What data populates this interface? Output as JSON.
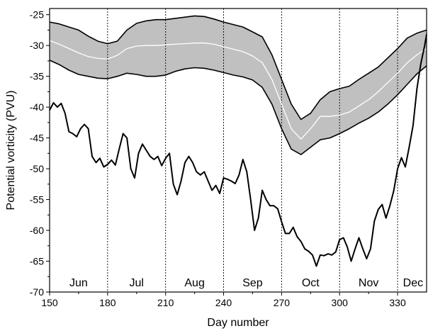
{
  "chart_data": {
    "type": "line",
    "title": "",
    "xlabel": "Day number",
    "ylabel": "Potential vorticity (PVU)",
    "xlim": [
      150,
      345
    ],
    "ylim": [
      -70,
      -24
    ],
    "xticks": [
      150,
      180,
      210,
      240,
      270,
      300,
      330
    ],
    "yticks": [
      -70,
      -65,
      -60,
      -55,
      -50,
      -45,
      -40,
      -35,
      -30,
      -25
    ],
    "month_dividers": [
      180,
      210,
      240,
      270,
      300,
      330
    ],
    "month_labels": [
      {
        "label": "Jun",
        "x": 165
      },
      {
        "label": "Jul",
        "x": 195
      },
      {
        "label": "Aug",
        "x": 225
      },
      {
        "label": "Sep",
        "x": 255
      },
      {
        "label": "Oct",
        "x": 285
      },
      {
        "label": "Nov",
        "x": 315
      },
      {
        "label": "Dec",
        "x": 338
      }
    ],
    "band_color": "#c0c0c0",
    "series": [
      {
        "role": "band-upper",
        "color": "#000000",
        "x": [
          150,
          155,
          160,
          165,
          170,
          175,
          180,
          185,
          190,
          195,
          200,
          205,
          210,
          215,
          220,
          225,
          230,
          235,
          240,
          245,
          250,
          255,
          260,
          265,
          270,
          275,
          280,
          285,
          290,
          295,
          300,
          305,
          310,
          315,
          320,
          325,
          330,
          335,
          340,
          345
        ],
        "y": [
          -26.2,
          -26.5,
          -27,
          -27.5,
          -28.5,
          -29.3,
          -29.7,
          -29.3,
          -27.5,
          -26.4,
          -26,
          -25.8,
          -25.8,
          -25.6,
          -25.4,
          -25.2,
          -25.3,
          -25.7,
          -26.2,
          -26.6,
          -27,
          -27.8,
          -28.6,
          -31.5,
          -35.5,
          -39.5,
          -42,
          -41,
          -38.8,
          -37.5,
          -37,
          -36.6,
          -35.5,
          -34.5,
          -33.5,
          -32,
          -30.5,
          -28.8,
          -28,
          -27.5
        ]
      },
      {
        "role": "mean",
        "color": "#ffffff",
        "x": [
          150,
          155,
          160,
          165,
          170,
          175,
          180,
          185,
          190,
          195,
          200,
          205,
          210,
          215,
          220,
          225,
          230,
          235,
          240,
          245,
          250,
          255,
          260,
          265,
          270,
          275,
          280,
          285,
          290,
          295,
          300,
          305,
          310,
          315,
          320,
          325,
          330,
          335,
          340,
          345
        ],
        "y": [
          -29.2,
          -29.8,
          -30.5,
          -31.2,
          -31.8,
          -32.1,
          -32.2,
          -31.6,
          -30.5,
          -30.1,
          -30,
          -30,
          -29.9,
          -29.8,
          -29.7,
          -29.6,
          -29.6,
          -29.8,
          -30.2,
          -30.6,
          -31,
          -31.7,
          -32.8,
          -35.5,
          -39.5,
          -43.5,
          -45.2,
          -43.5,
          -41.5,
          -41.5,
          -41.3,
          -40.8,
          -39.8,
          -38.8,
          -37.5,
          -36,
          -34.5,
          -32.8,
          -31.5,
          -30.5
        ]
      },
      {
        "role": "band-lower",
        "color": "#000000",
        "x": [
          150,
          155,
          160,
          165,
          170,
          175,
          180,
          185,
          190,
          195,
          200,
          205,
          210,
          215,
          220,
          225,
          230,
          235,
          240,
          245,
          250,
          255,
          260,
          265,
          270,
          275,
          280,
          285,
          290,
          295,
          300,
          305,
          310,
          315,
          320,
          325,
          330,
          335,
          340,
          345
        ],
        "y": [
          -32.4,
          -33.1,
          -34,
          -34.7,
          -35,
          -35.3,
          -35.4,
          -35,
          -34.5,
          -34.7,
          -35,
          -35,
          -34.8,
          -34.2,
          -33.8,
          -33.6,
          -33.7,
          -34,
          -34.4,
          -34.8,
          -35.1,
          -35.6,
          -36.8,
          -39.5,
          -43.5,
          -46.8,
          -47.7,
          -46.5,
          -45.3,
          -45,
          -44.3,
          -43.5,
          -42.6,
          -41.8,
          -40.8,
          -39.5,
          -38,
          -36.3,
          -34.6,
          -33.3
        ]
      },
      {
        "role": "black-curve",
        "color": "#000000",
        "x": [
          150,
          152,
          154,
          156,
          158,
          160,
          162,
          164,
          166,
          168,
          170,
          172,
          174,
          176,
          178,
          180,
          182,
          184,
          186,
          188,
          190,
          192,
          194,
          196,
          198,
          200,
          202,
          204,
          206,
          208,
          210,
          212,
          214,
          216,
          218,
          220,
          222,
          224,
          226,
          228,
          230,
          232,
          234,
          236,
          238,
          240,
          242,
          244,
          246,
          248,
          250,
          252,
          254,
          256,
          258,
          260,
          262,
          264,
          266,
          268,
          270,
          272,
          274,
          276,
          278,
          280,
          282,
          284,
          286,
          288,
          290,
          292,
          294,
          296,
          298,
          300,
          302,
          304,
          306,
          308,
          310,
          312,
          314,
          316,
          318,
          320,
          322,
          324,
          326,
          328,
          330,
          332,
          334,
          336,
          338,
          340,
          342,
          344,
          345
        ],
        "y": [
          -40.5,
          -39.3,
          -40,
          -39.4,
          -41,
          -44,
          -44.3,
          -44.8,
          -43.5,
          -42.8,
          -43.5,
          -48,
          -49,
          -48.3,
          -49.7,
          -49.3,
          -48.6,
          -49.4,
          -46.8,
          -44.3,
          -45,
          -50,
          -51.5,
          -47.5,
          -46,
          -47,
          -48,
          -48.5,
          -48,
          -49.5,
          -48.3,
          -47.5,
          -52.5,
          -54.2,
          -52,
          -49,
          -48,
          -49,
          -50.5,
          -51,
          -50.5,
          -52,
          -53.5,
          -52.7,
          -54,
          -51.5,
          -51.7,
          -52,
          -52.4,
          -51,
          -48.5,
          -50.5,
          -55,
          -60,
          -58,
          -53.5,
          -55,
          -56,
          -56,
          -56.5,
          -58.6,
          -60.5,
          -60.5,
          -59.5,
          -61,
          -61.8,
          -63,
          -63.4,
          -64,
          -65.8,
          -64,
          -64.1,
          -63.8,
          -64,
          -63.5,
          -61.5,
          -61.2,
          -62.7,
          -65,
          -63,
          -61.2,
          -63,
          -64.6,
          -63,
          -58.5,
          -56.6,
          -55.8,
          -58,
          -56,
          -53.6,
          -50,
          -48.2,
          -49.7,
          -46.5,
          -43,
          -37,
          -33,
          -30,
          -28.2
        ]
      }
    ]
  }
}
